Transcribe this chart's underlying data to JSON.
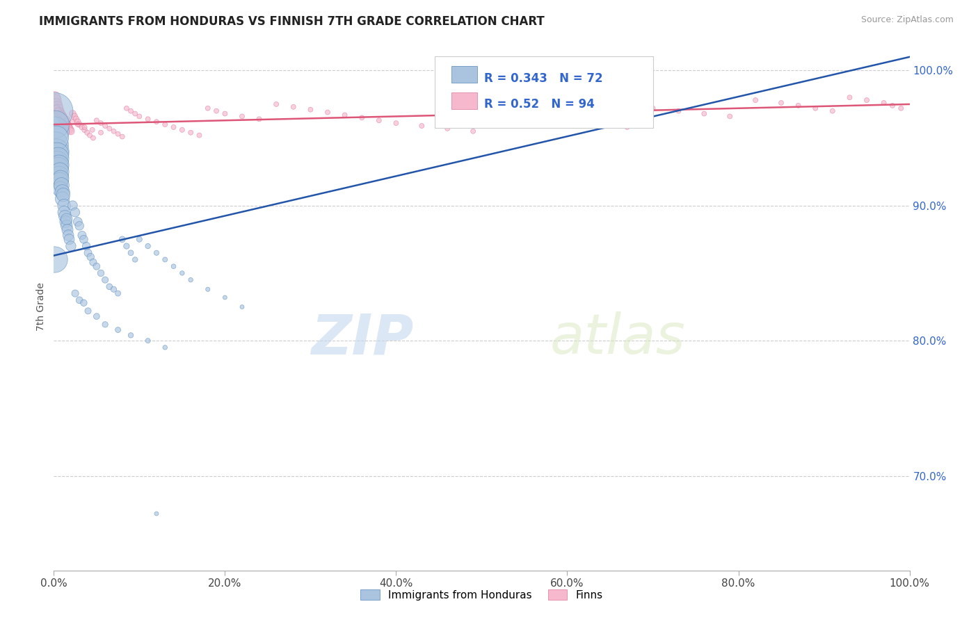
{
  "title": "IMMIGRANTS FROM HONDURAS VS FINNISH 7TH GRADE CORRELATION CHART",
  "source": "Source: ZipAtlas.com",
  "ylabel": "7th Grade",
  "xlim": [
    0.0,
    1.0
  ],
  "ylim": [
    0.63,
    1.02
  ],
  "blue_R": 0.343,
  "blue_N": 72,
  "pink_R": 0.52,
  "pink_N": 94,
  "blue_color": "#aac4e0",
  "blue_edge": "#5588bb",
  "pink_color": "#f5b8cc",
  "pink_edge": "#dd7799",
  "blue_line_color": "#2255aa",
  "pink_line_color": "#dd5577",
  "watermark_zip": "ZIP",
  "watermark_atlas": "atlas",
  "xticks": [
    0.0,
    0.2,
    0.4,
    0.6,
    0.8,
    1.0
  ],
  "xtick_labels": [
    "0.0%",
    "20.0%",
    "40.0%",
    "60.0%",
    "80.0%",
    "100.0%"
  ],
  "ytick_labels": [
    "100.0%",
    "90.0%",
    "80.0%",
    "70.0%"
  ],
  "yticks": [
    1.0,
    0.9,
    0.8,
    0.7
  ],
  "legend_blue_label": "Immigrants from Honduras",
  "legend_pink_label": "Finns",
  "grid_color": "#cccccc",
  "background_color": "#ffffff",
  "blue_trend_x0": 0.0,
  "blue_trend_y0": 0.863,
  "blue_trend_x1": 1.0,
  "blue_trend_y1": 1.01,
  "pink_trend_x0": 0.0,
  "pink_trend_y0": 0.96,
  "pink_trend_x1": 1.0,
  "pink_trend_y1": 0.975
}
